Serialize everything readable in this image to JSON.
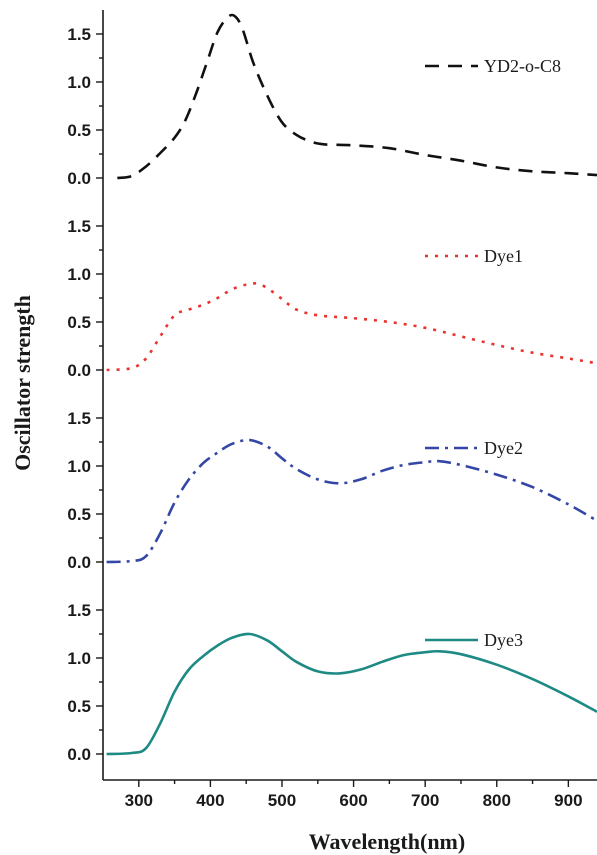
{
  "chart_data": {
    "type": "line",
    "layout": "stacked-panels",
    "xlabel": "Wavelength(nm)",
    "ylabel": "Oscillator strength",
    "xlim": [
      250,
      940
    ],
    "x_ticks": [
      300,
      400,
      500,
      600,
      700,
      800,
      900
    ],
    "ylim": [
      0,
      1.75
    ],
    "y_ticks": [
      0.0,
      0.5,
      1.0,
      1.5
    ],
    "legend": "per-panel top-right",
    "grid": false,
    "series": [
      {
        "name": "YD2-o-C8",
        "color": "#111111",
        "dash": "dashed",
        "points": [
          [
            270,
            0
          ],
          [
            290,
            0.02
          ],
          [
            310,
            0.12
          ],
          [
            330,
            0.26
          ],
          [
            350,
            0.42
          ],
          [
            365,
            0.6
          ],
          [
            380,
            0.88
          ],
          [
            395,
            1.2
          ],
          [
            410,
            1.52
          ],
          [
            425,
            1.68
          ],
          [
            435,
            1.68
          ],
          [
            445,
            1.55
          ],
          [
            460,
            1.2
          ],
          [
            480,
            0.85
          ],
          [
            500,
            0.58
          ],
          [
            520,
            0.45
          ],
          [
            540,
            0.38
          ],
          [
            560,
            0.35
          ],
          [
            600,
            0.34
          ],
          [
            650,
            0.31
          ],
          [
            700,
            0.24
          ],
          [
            750,
            0.18
          ],
          [
            800,
            0.11
          ],
          [
            850,
            0.07
          ],
          [
            900,
            0.05
          ],
          [
            940,
            0.03
          ]
        ]
      },
      {
        "name": "Dye1",
        "color": "#e8332f",
        "dash": "dotted",
        "points": [
          [
            255,
            0
          ],
          [
            290,
            0.02
          ],
          [
            310,
            0.12
          ],
          [
            330,
            0.35
          ],
          [
            350,
            0.57
          ],
          [
            370,
            0.63
          ],
          [
            390,
            0.68
          ],
          [
            410,
            0.75
          ],
          [
            430,
            0.84
          ],
          [
            450,
            0.89
          ],
          [
            465,
            0.9
          ],
          [
            480,
            0.85
          ],
          [
            500,
            0.74
          ],
          [
            520,
            0.63
          ],
          [
            550,
            0.57
          ],
          [
            600,
            0.54
          ],
          [
            650,
            0.5
          ],
          [
            700,
            0.44
          ],
          [
            750,
            0.35
          ],
          [
            800,
            0.26
          ],
          [
            850,
            0.18
          ],
          [
            900,
            0.12
          ],
          [
            940,
            0.07
          ]
        ]
      },
      {
        "name": "Dye2",
        "color": "#3547a6",
        "dash": "dashdot",
        "points": [
          [
            255,
            0
          ],
          [
            290,
            0.01
          ],
          [
            310,
            0.06
          ],
          [
            330,
            0.3
          ],
          [
            350,
            0.62
          ],
          [
            370,
            0.86
          ],
          [
            390,
            1.03
          ],
          [
            410,
            1.14
          ],
          [
            430,
            1.23
          ],
          [
            455,
            1.27
          ],
          [
            480,
            1.2
          ],
          [
            500,
            1.08
          ],
          [
            520,
            0.97
          ],
          [
            550,
            0.86
          ],
          [
            580,
            0.82
          ],
          [
            610,
            0.86
          ],
          [
            640,
            0.95
          ],
          [
            670,
            1.01
          ],
          [
            700,
            1.04
          ],
          [
            720,
            1.05
          ],
          [
            750,
            1.01
          ],
          [
            800,
            0.91
          ],
          [
            850,
            0.78
          ],
          [
            900,
            0.6
          ],
          [
            940,
            0.43
          ]
        ]
      },
      {
        "name": "Dye3",
        "color": "#1e8a84",
        "dash": "solid",
        "points": [
          [
            255,
            0
          ],
          [
            290,
            0.01
          ],
          [
            310,
            0.06
          ],
          [
            330,
            0.32
          ],
          [
            350,
            0.65
          ],
          [
            370,
            0.88
          ],
          [
            390,
            1.02
          ],
          [
            410,
            1.13
          ],
          [
            430,
            1.21
          ],
          [
            455,
            1.25
          ],
          [
            480,
            1.18
          ],
          [
            500,
            1.07
          ],
          [
            520,
            0.96
          ],
          [
            550,
            0.86
          ],
          [
            580,
            0.84
          ],
          [
            610,
            0.88
          ],
          [
            640,
            0.96
          ],
          [
            670,
            1.03
          ],
          [
            700,
            1.06
          ],
          [
            720,
            1.07
          ],
          [
            750,
            1.04
          ],
          [
            800,
            0.93
          ],
          [
            850,
            0.78
          ],
          [
            900,
            0.6
          ],
          [
            940,
            0.44
          ]
        ]
      }
    ]
  }
}
